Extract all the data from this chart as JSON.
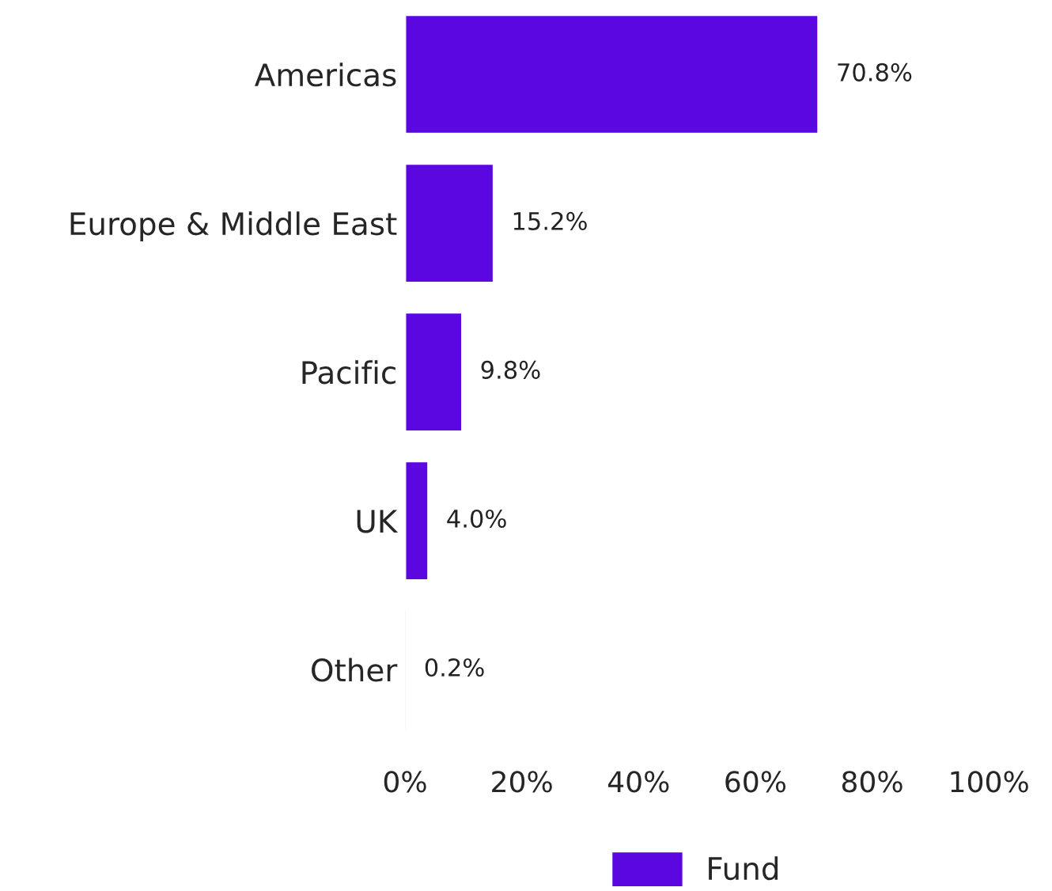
{
  "chart_data": {
    "type": "bar",
    "orientation": "horizontal",
    "categories": [
      "Americas",
      "Europe & Middle East",
      "Pacific",
      "UK",
      "Other"
    ],
    "series": [
      {
        "name": "Fund",
        "color": "#5b08e0",
        "values": [
          70.8,
          15.2,
          9.8,
          4.0,
          0.2
        ],
        "value_labels": [
          "70.8%",
          "15.2%",
          "9.8%",
          "4.0%",
          "0.2%"
        ]
      }
    ],
    "xlim": [
      0,
      100
    ],
    "xticks": [
      {
        "value": 0,
        "label": "0%"
      },
      {
        "value": 20,
        "label": "20%"
      },
      {
        "value": 40,
        "label": "40%"
      },
      {
        "value": 60,
        "label": "60%"
      },
      {
        "value": 80,
        "label": "80%"
      },
      {
        "value": 100,
        "label": "100%"
      }
    ],
    "grid": false,
    "legend": "bottom"
  }
}
